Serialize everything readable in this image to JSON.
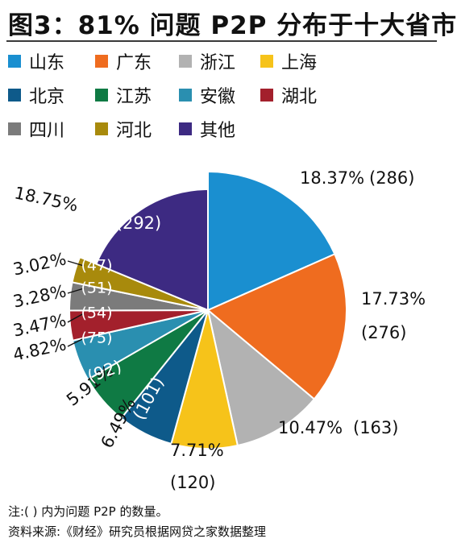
{
  "title": "图3：81% 问题 P2P 分布于十大省市",
  "legend": [
    {
      "name": "山东",
      "color": "#1a8fd0"
    },
    {
      "name": "广东",
      "color": "#ef6c1f"
    },
    {
      "name": "浙江",
      "color": "#b2b2b2"
    },
    {
      "name": "上海",
      "color": "#f6c31a"
    },
    {
      "name": "北京",
      "color": "#0e5a8a"
    },
    {
      "name": "江苏",
      "color": "#0f7a44"
    },
    {
      "name": "安徽",
      "color": "#2a8fb0"
    },
    {
      "name": "湖北",
      "color": "#a3202c"
    },
    {
      "name": "四川",
      "color": "#7b7b7b"
    },
    {
      "name": "河北",
      "color": "#a88a0c"
    },
    {
      "name": "其他",
      "color": "#3d2a82"
    }
  ],
  "chart_data": {
    "type": "pie",
    "title": "图3：81% 问题 P2P 分布于十大省市",
    "categories": [
      "山东",
      "广东",
      "浙江",
      "上海",
      "北京",
      "江苏",
      "安徽",
      "湖北",
      "四川",
      "河北",
      "其他"
    ],
    "percent_labels": [
      "18.37%",
      "17.73%",
      "10.47%",
      "7.71%",
      "6.49%",
      "5.91%",
      "4.82%",
      "3.47%",
      "3.28%",
      "3.02%",
      "18.75%"
    ],
    "values": [
      286,
      276,
      163,
      120,
      101,
      92,
      75,
      54,
      51,
      47,
      292
    ],
    "count_labels": [
      "(286)",
      "(276)",
      "(163)",
      "(120)",
      "(101)",
      "(92)",
      "(75)",
      "(54)",
      "(51)",
      "(47)",
      "(292)"
    ],
    "legend_position": "top"
  },
  "footnote": {
    "note": "注:( ) 内为问题 P2P 的数量。",
    "source": "资料来源:《财经》研究员根据网贷之家数据整理"
  }
}
